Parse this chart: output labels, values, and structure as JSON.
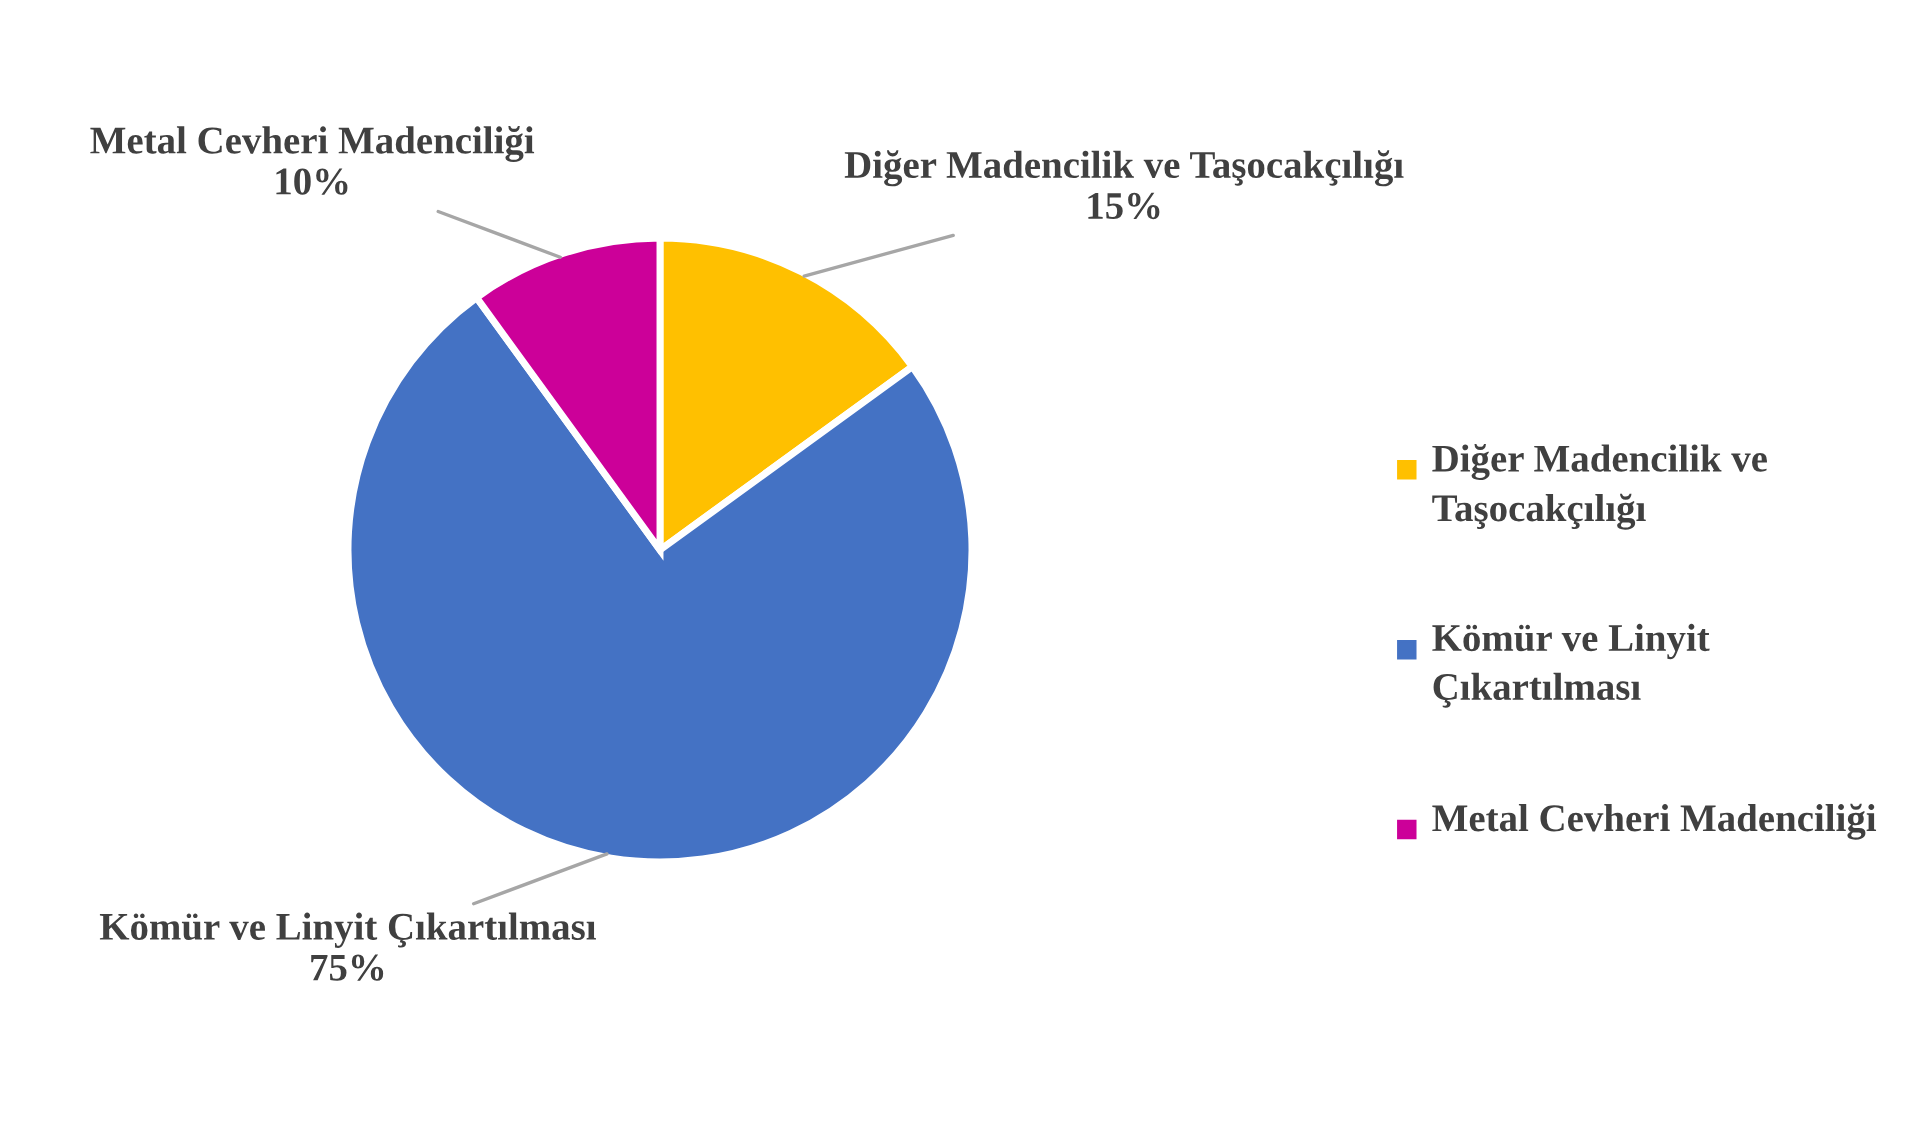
{
  "chart_data": {
    "type": "pie",
    "categories": [
      "Diğer Madencilik ve Taşocakçılığı",
      "Kömür ve Linyit Çıkartılması",
      "Metal Cevheri Madenciliği"
    ],
    "values": [
      15,
      75,
      10
    ],
    "colors": [
      "#ffc000",
      "#4472c4",
      "#cc0099"
    ],
    "value_labels": [
      "15%",
      "75%",
      "10%"
    ],
    "legend": "right"
  }
}
